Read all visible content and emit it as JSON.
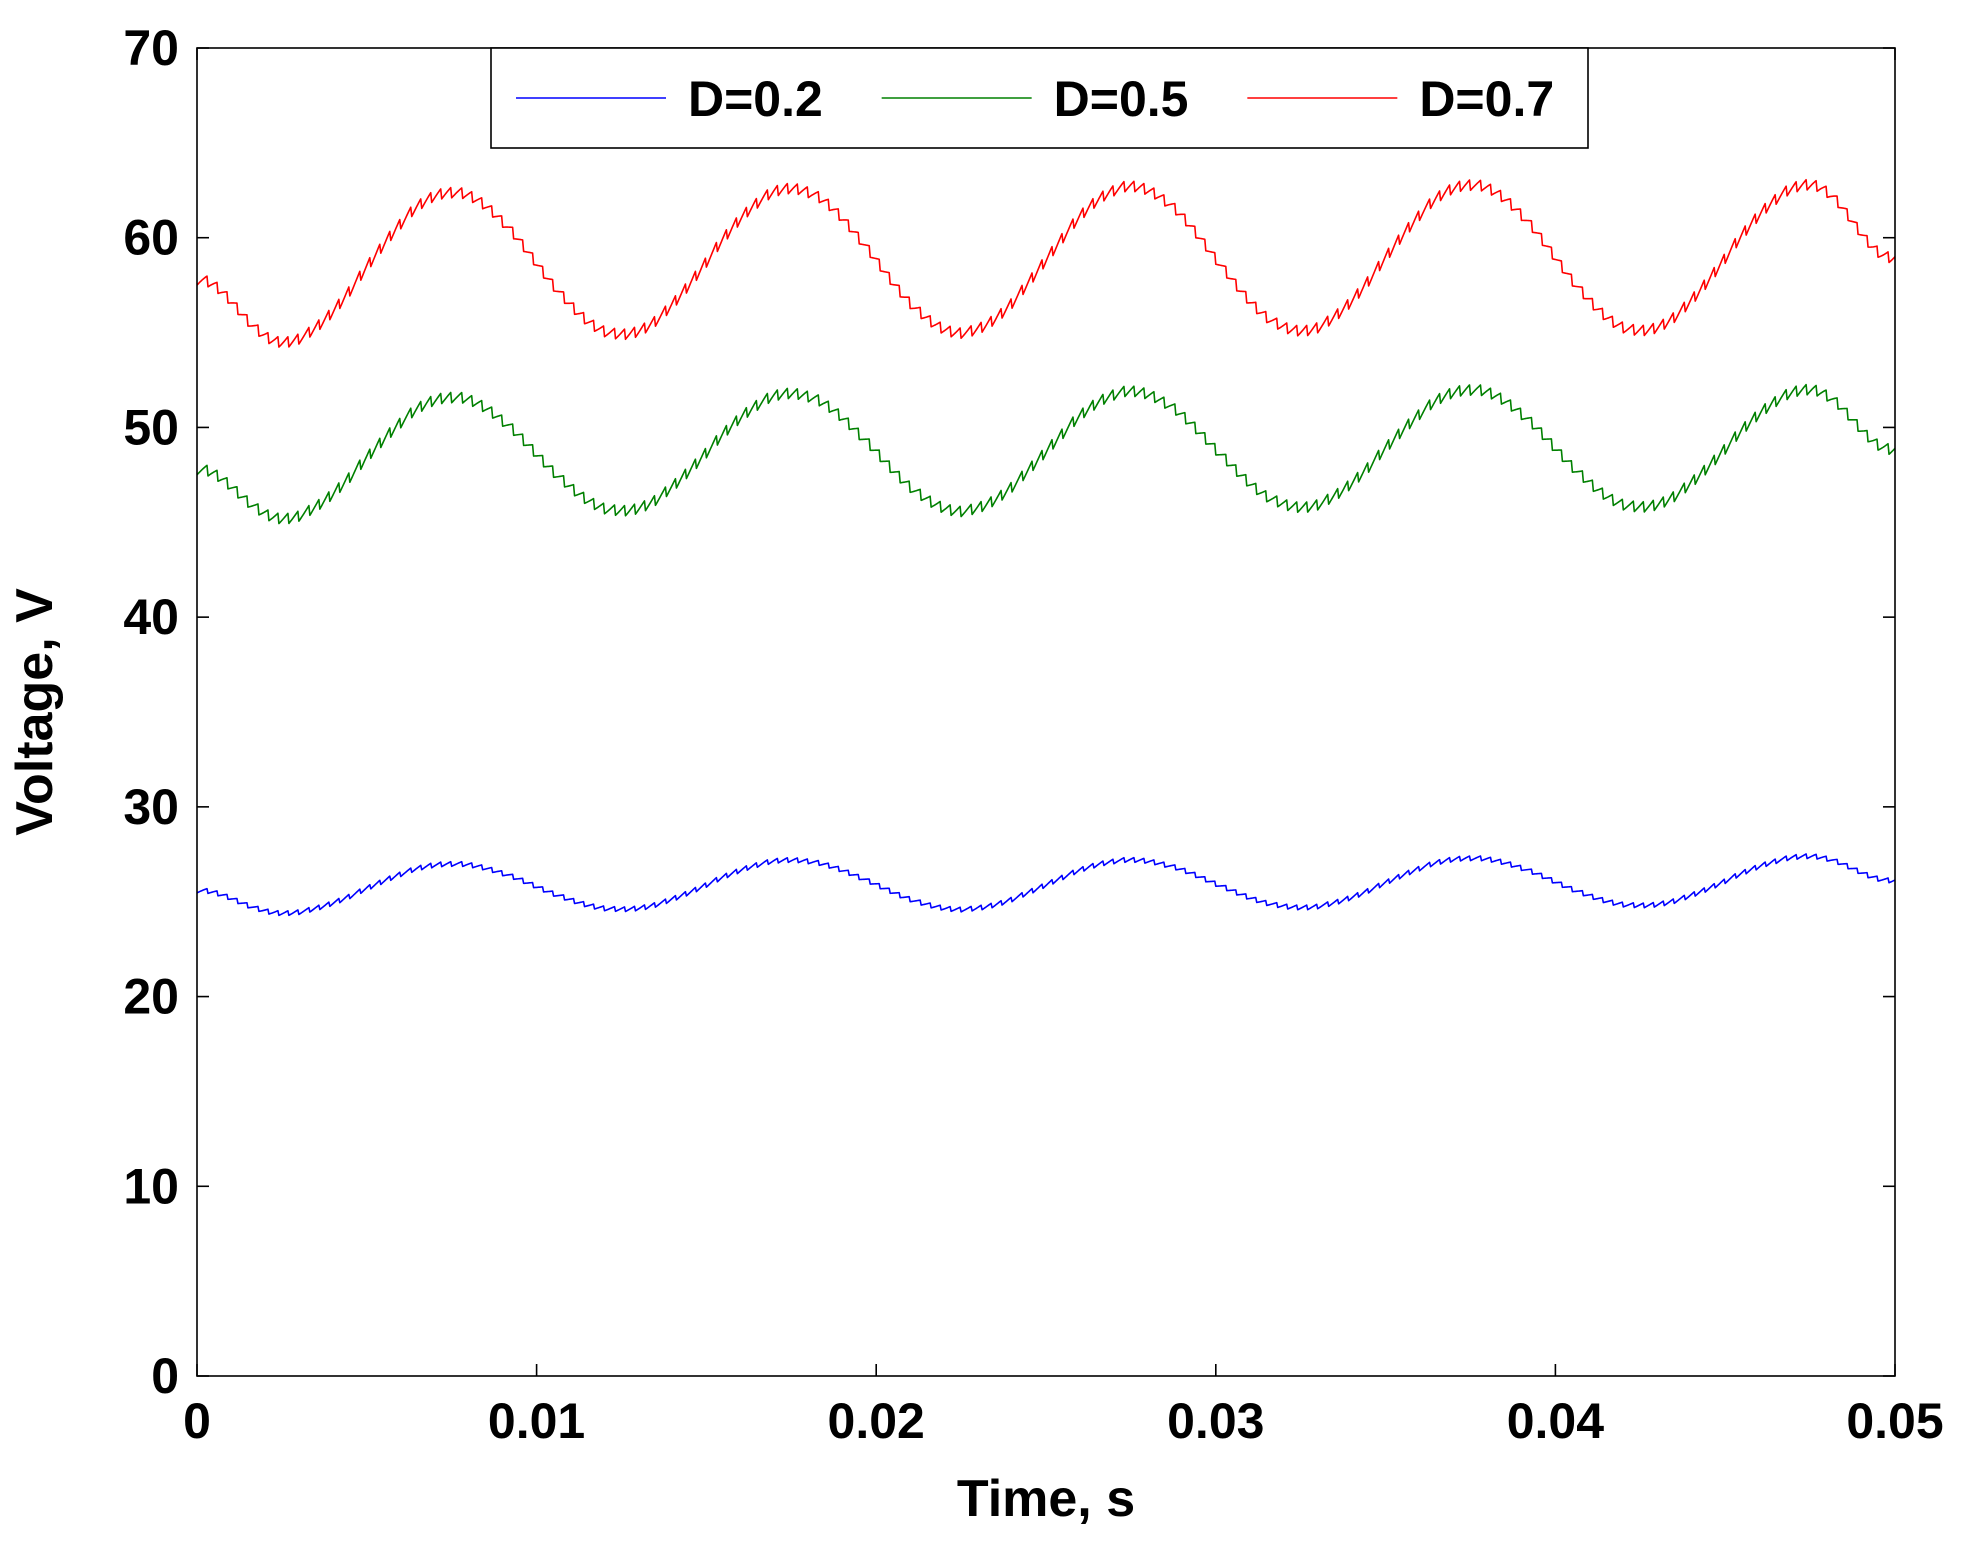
{
  "chart_data": {
    "type": "line",
    "xlabel": "Time, s",
    "ylabel": "Voltage, V",
    "xlim": [
      0,
      0.05
    ],
    "ylim": [
      0,
      70
    ],
    "x_ticks": [
      0,
      0.01,
      0.02,
      0.03,
      0.04,
      0.05
    ],
    "x_tick_labels": [
      "0",
      "0.01",
      "0.02",
      "0.03",
      "0.04",
      "0.05"
    ],
    "y_ticks": [
      0,
      10,
      20,
      30,
      40,
      50,
      60,
      70
    ],
    "y_tick_labels": [
      "0",
      "10",
      "20",
      "30",
      "40",
      "50",
      "60",
      "70"
    ],
    "grid": false,
    "legend_position": "top-center",
    "series": [
      {
        "name": "D=0.2",
        "color": "#0000ff",
        "x": [
          0,
          0.0025,
          0.0075,
          0.0125,
          0.0175,
          0.0225,
          0.0275,
          0.0325,
          0.0375,
          0.0425,
          0.0475,
          0.05
        ],
        "y": [
          25.6,
          24.4,
          27.0,
          24.6,
          27.2,
          24.6,
          27.2,
          24.7,
          27.3,
          24.8,
          27.4,
          26.1
        ]
      },
      {
        "name": "D=0.5",
        "color": "#008000",
        "x": [
          0,
          0.0025,
          0.0075,
          0.0125,
          0.0175,
          0.0225,
          0.0275,
          0.0325,
          0.0375,
          0.0425,
          0.0475,
          0.05
        ],
        "y": [
          47.8,
          45.2,
          51.6,
          45.6,
          51.8,
          45.6,
          51.9,
          45.8,
          52.0,
          45.8,
          52.0,
          48.8
        ]
      },
      {
        "name": "D=0.7",
        "color": "#ff0000",
        "x": [
          0,
          0.0025,
          0.0075,
          0.0125,
          0.0175,
          0.0225,
          0.0275,
          0.0325,
          0.0375,
          0.0425,
          0.0475,
          0.05
        ],
        "y": [
          57.8,
          54.5,
          62.4,
          54.9,
          62.6,
          55.0,
          62.7,
          55.1,
          62.8,
          55.1,
          62.8,
          58.9
        ]
      }
    ],
    "ripple_amplitude": 0.6,
    "ripple_period": 0.0003
  }
}
